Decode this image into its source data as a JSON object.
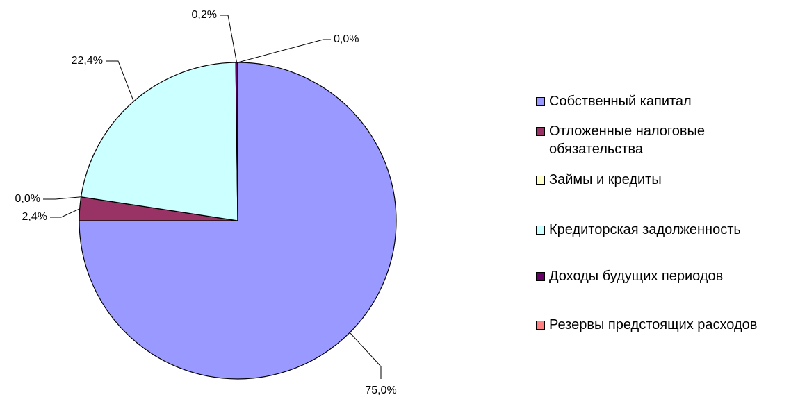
{
  "chart_data": {
    "type": "pie",
    "categories": [
      "Собственный капитал",
      "Отложенные налоговые обязательства",
      "Займы и кредиты",
      "Кредиторская задолженность",
      "Доходы будущих периодов",
      "Резервы предстоящих расходов"
    ],
    "values": [
      75.0,
      2.4,
      0.0,
      22.4,
      0.2,
      0.0
    ],
    "value_labels": [
      "75,0%",
      "2,4%",
      "0,0%",
      "22,4%",
      "0,2%",
      "0,0%"
    ],
    "colors": [
      "#9999ff",
      "#993366",
      "#ffffcc",
      "#ccffff",
      "#660066",
      "#ff8080"
    ],
    "legend": "right"
  }
}
